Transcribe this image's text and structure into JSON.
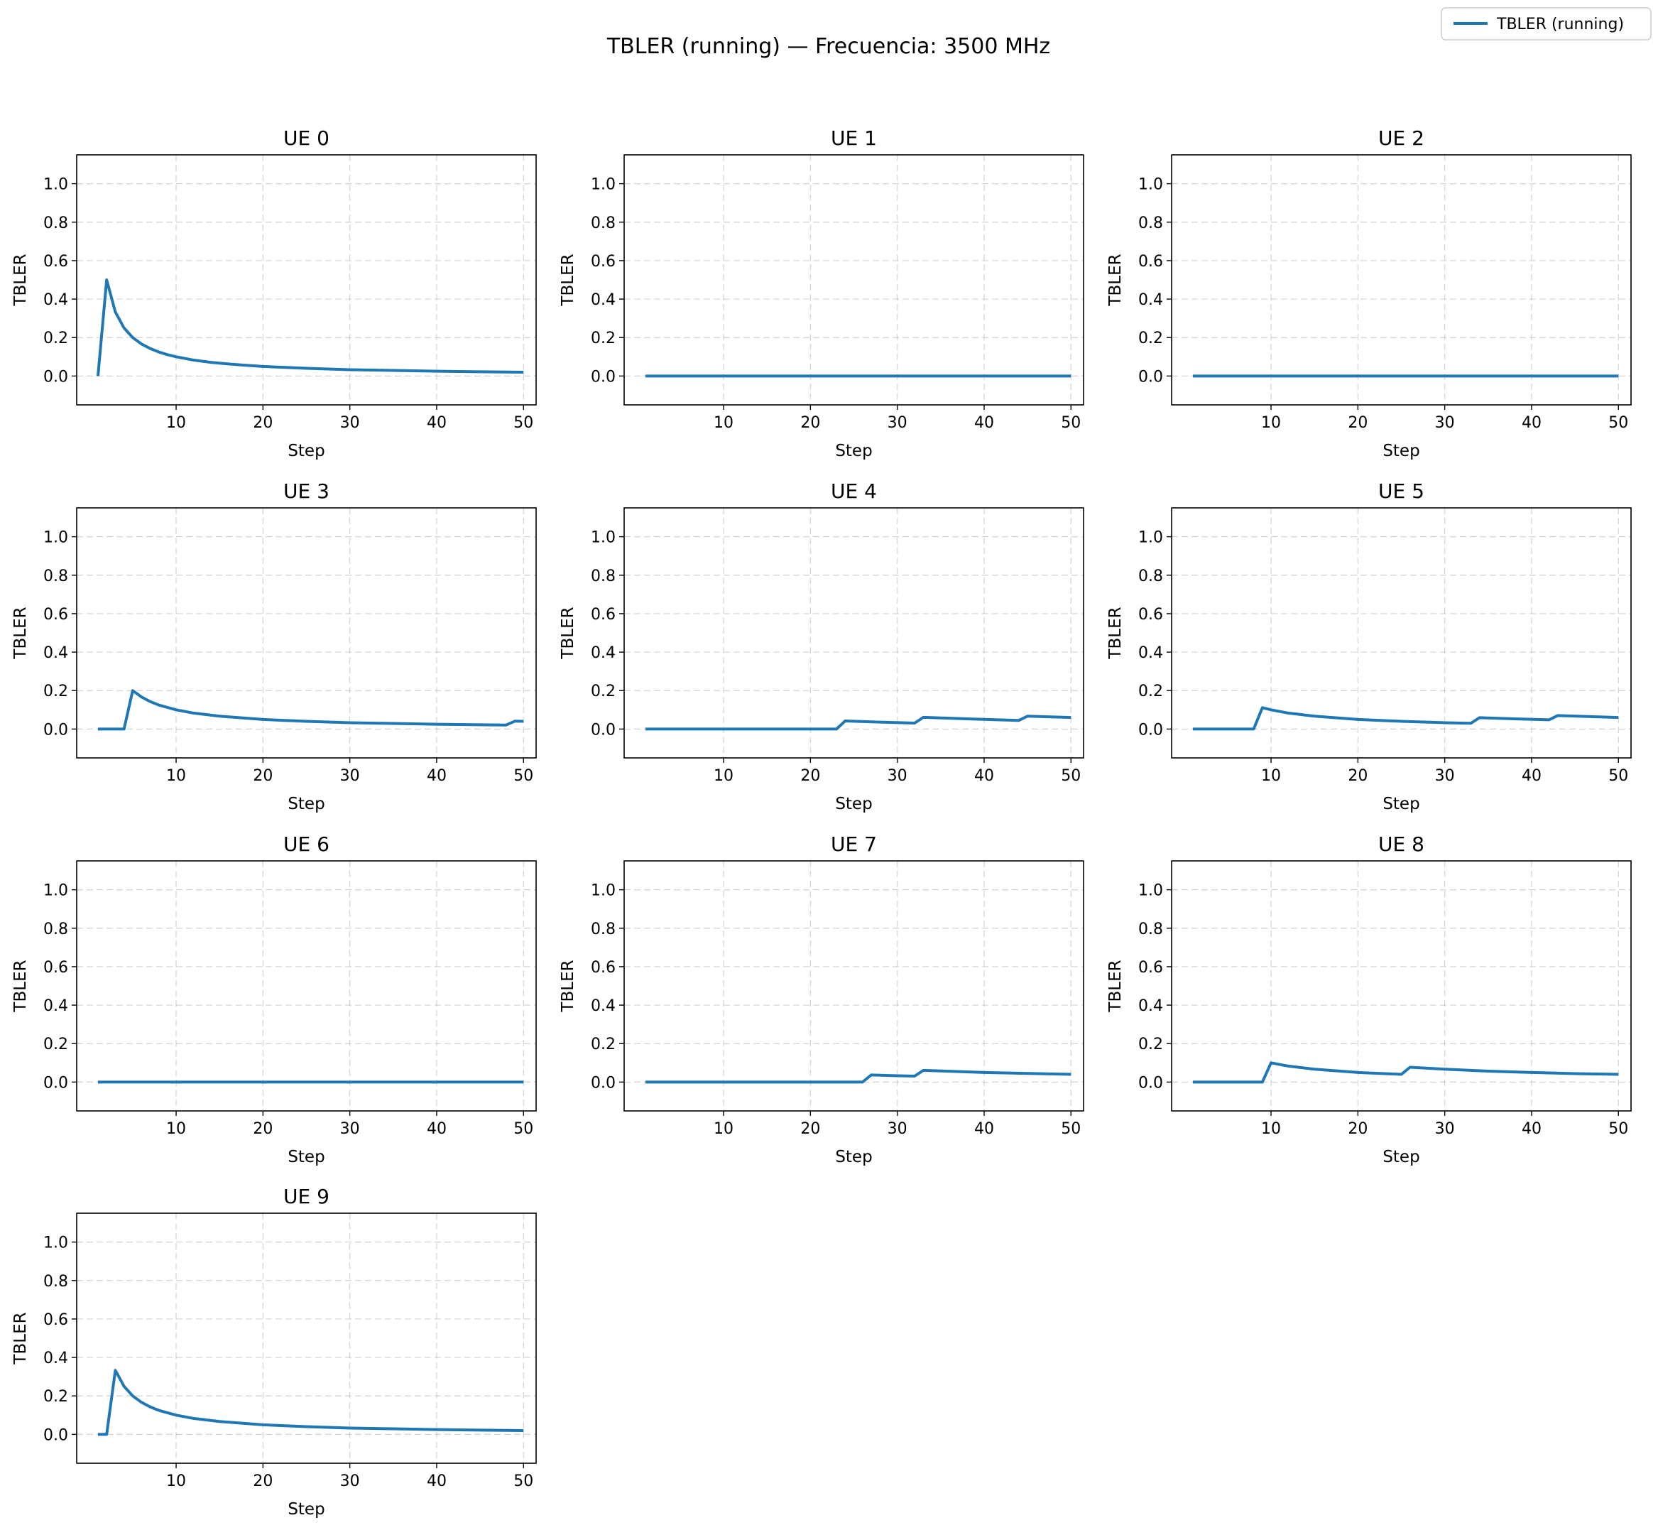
{
  "suptitle": "TBLER (running) — Frecuencia: 3500 MHz",
  "legend": {
    "label": "TBLER (running)",
    "placement": "top-right",
    "color": "#1f77b4"
  },
  "chart_data": [
    {
      "type": "line",
      "title": "UE 0",
      "xlabel": "Step",
      "ylabel": "TBLER",
      "xlim": [
        -1.45,
        51.45
      ],
      "ylim": [
        -0.15,
        1.15
      ],
      "xticks": [
        10,
        20,
        30,
        40,
        50
      ],
      "yticks": [
        0.0,
        0.2,
        0.4,
        0.6,
        0.8,
        1.0
      ],
      "grid": true,
      "series": [
        {
          "name": "TBLER (running)",
          "x": [
            1,
            2,
            3,
            4,
            5,
            6,
            7,
            8,
            9,
            10,
            12,
            14,
            16,
            18,
            20,
            25,
            30,
            35,
            40,
            45,
            50
          ],
          "y": [
            0.0,
            0.5,
            0.333,
            0.25,
            0.2,
            0.167,
            0.143,
            0.125,
            0.111,
            0.1,
            0.083,
            0.071,
            0.063,
            0.056,
            0.05,
            0.04,
            0.033,
            0.029,
            0.025,
            0.022,
            0.02
          ]
        }
      ]
    },
    {
      "type": "line",
      "title": "UE 1",
      "xlabel": "Step",
      "ylabel": "TBLER",
      "xlim": [
        -1.45,
        51.45
      ],
      "ylim": [
        -0.15,
        1.15
      ],
      "xticks": [
        10,
        20,
        30,
        40,
        50
      ],
      "yticks": [
        0.0,
        0.2,
        0.4,
        0.6,
        0.8,
        1.0
      ],
      "grid": true,
      "series": [
        {
          "name": "TBLER (running)",
          "x": [
            1,
            50
          ],
          "y": [
            0.0,
            0.0
          ]
        }
      ]
    },
    {
      "type": "line",
      "title": "UE 2",
      "xlabel": "Step",
      "ylabel": "TBLER",
      "xlim": [
        -1.45,
        51.45
      ],
      "ylim": [
        -0.15,
        1.15
      ],
      "xticks": [
        10,
        20,
        30,
        40,
        50
      ],
      "yticks": [
        0.0,
        0.2,
        0.4,
        0.6,
        0.8,
        1.0
      ],
      "grid": true,
      "series": [
        {
          "name": "TBLER (running)",
          "x": [
            1,
            50
          ],
          "y": [
            0.0,
            0.0
          ]
        }
      ]
    },
    {
      "type": "line",
      "title": "UE 3",
      "xlabel": "Step",
      "ylabel": "TBLER",
      "xlim": [
        -1.45,
        51.45
      ],
      "ylim": [
        -0.15,
        1.15
      ],
      "xticks": [
        10,
        20,
        30,
        40,
        50
      ],
      "yticks": [
        0.0,
        0.2,
        0.4,
        0.6,
        0.8,
        1.0
      ],
      "grid": true,
      "series": [
        {
          "name": "TBLER (running)",
          "x": [
            1,
            2,
            3,
            4,
            5,
            6,
            7,
            8,
            10,
            12,
            15,
            20,
            25,
            30,
            35,
            40,
            45,
            48,
            49,
            50
          ],
          "y": [
            0.0,
            0.0,
            0.0,
            0.0,
            0.2,
            0.167,
            0.143,
            0.125,
            0.1,
            0.083,
            0.067,
            0.05,
            0.04,
            0.033,
            0.029,
            0.025,
            0.022,
            0.021,
            0.041,
            0.04
          ]
        }
      ]
    },
    {
      "type": "line",
      "title": "UE 4",
      "xlabel": "Step",
      "ylabel": "TBLER",
      "xlim": [
        -1.45,
        51.45
      ],
      "ylim": [
        -0.15,
        1.15
      ],
      "xticks": [
        10,
        20,
        30,
        40,
        50
      ],
      "yticks": [
        0.0,
        0.2,
        0.4,
        0.6,
        0.8,
        1.0
      ],
      "grid": true,
      "series": [
        {
          "name": "TBLER (running)",
          "x": [
            1,
            23,
            24,
            28,
            32,
            33,
            38,
            44,
            45,
            50
          ],
          "y": [
            0.0,
            0.0,
            0.042,
            0.036,
            0.031,
            0.061,
            0.053,
            0.045,
            0.067,
            0.06
          ]
        }
      ]
    },
    {
      "type": "line",
      "title": "UE 5",
      "xlabel": "Step",
      "ylabel": "TBLER",
      "xlim": [
        -1.45,
        51.45
      ],
      "ylim": [
        -0.15,
        1.15
      ],
      "xticks": [
        10,
        20,
        30,
        40,
        50
      ],
      "yticks": [
        0.0,
        0.2,
        0.4,
        0.6,
        0.8,
        1.0
      ],
      "grid": true,
      "series": [
        {
          "name": "TBLER (running)",
          "x": [
            1,
            8,
            9,
            10,
            12,
            15,
            20,
            25,
            30,
            33,
            34,
            38,
            42,
            43,
            50
          ],
          "y": [
            0.0,
            0.0,
            0.111,
            0.1,
            0.083,
            0.067,
            0.05,
            0.04,
            0.033,
            0.03,
            0.059,
            0.053,
            0.048,
            0.07,
            0.06
          ]
        }
      ]
    },
    {
      "type": "line",
      "title": "UE 6",
      "xlabel": "Step",
      "ylabel": "TBLER",
      "xlim": [
        -1.45,
        51.45
      ],
      "ylim": [
        -0.15,
        1.15
      ],
      "xticks": [
        10,
        20,
        30,
        40,
        50
      ],
      "yticks": [
        0.0,
        0.2,
        0.4,
        0.6,
        0.8,
        1.0
      ],
      "grid": true,
      "series": [
        {
          "name": "TBLER (running)",
          "x": [
            1,
            50
          ],
          "y": [
            0.0,
            0.0
          ]
        }
      ]
    },
    {
      "type": "line",
      "title": "UE 7",
      "xlabel": "Step",
      "ylabel": "TBLER",
      "xlim": [
        -1.45,
        51.45
      ],
      "ylim": [
        -0.15,
        1.15
      ],
      "xticks": [
        10,
        20,
        30,
        40,
        50
      ],
      "yticks": [
        0.0,
        0.2,
        0.4,
        0.6,
        0.8,
        1.0
      ],
      "grid": true,
      "series": [
        {
          "name": "TBLER (running)",
          "x": [
            1,
            26,
            27,
            30,
            32,
            33,
            40,
            50
          ],
          "y": [
            0.0,
            0.0,
            0.037,
            0.033,
            0.031,
            0.061,
            0.05,
            0.04
          ]
        }
      ]
    },
    {
      "type": "line",
      "title": "UE 8",
      "xlabel": "Step",
      "ylabel": "TBLER",
      "xlim": [
        -1.45,
        51.45
      ],
      "ylim": [
        -0.15,
        1.15
      ],
      "xticks": [
        10,
        20,
        30,
        40,
        50
      ],
      "yticks": [
        0.0,
        0.2,
        0.4,
        0.6,
        0.8,
        1.0
      ],
      "grid": true,
      "series": [
        {
          "name": "TBLER (running)",
          "x": [
            1,
            9,
            10,
            12,
            15,
            20,
            25,
            26,
            30,
            35,
            40,
            45,
            50
          ],
          "y": [
            0.0,
            0.0,
            0.1,
            0.083,
            0.067,
            0.05,
            0.04,
            0.077,
            0.067,
            0.057,
            0.05,
            0.044,
            0.04
          ]
        }
      ]
    },
    {
      "type": "line",
      "title": "UE 9",
      "xlabel": "Step",
      "ylabel": "TBLER",
      "xlim": [
        -1.45,
        51.45
      ],
      "ylim": [
        -0.15,
        1.15
      ],
      "xticks": [
        10,
        20,
        30,
        40,
        50
      ],
      "yticks": [
        0.0,
        0.2,
        0.4,
        0.6,
        0.8,
        1.0
      ],
      "grid": true,
      "series": [
        {
          "name": "TBLER (running)",
          "x": [
            1,
            2,
            3,
            4,
            5,
            6,
            7,
            8,
            10,
            12,
            15,
            20,
            25,
            30,
            35,
            40,
            45,
            50
          ],
          "y": [
            0.0,
            0.0,
            0.333,
            0.25,
            0.2,
            0.167,
            0.143,
            0.125,
            0.1,
            0.083,
            0.067,
            0.05,
            0.04,
            0.033,
            0.029,
            0.025,
            0.022,
            0.02
          ]
        }
      ]
    }
  ]
}
